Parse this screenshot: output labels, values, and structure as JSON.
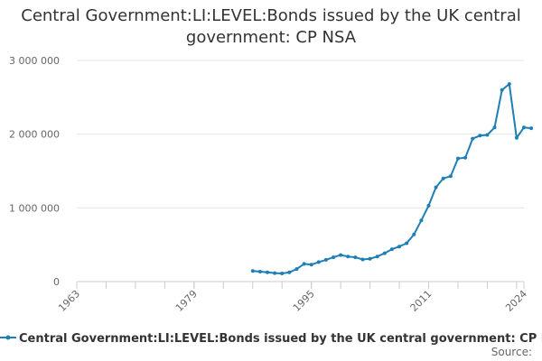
{
  "chart_data": {
    "type": "line",
    "title": "Central Government:LI:LEVEL:Bonds issued by the UK central government: CP NSA",
    "xlabel": "",
    "ylabel": "",
    "xlim": [
      1963,
      2024
    ],
    "ylim": [
      0,
      3000000
    ],
    "x_ticks": [
      1963,
      1979,
      1995,
      2011,
      2024
    ],
    "x_tick_labels": [
      "1963",
      "1979",
      "1995",
      "2011",
      "2024"
    ],
    "y_ticks": [
      0,
      1000000,
      2000000,
      3000000
    ],
    "y_tick_labels": [
      "0",
      "1 000 000",
      "2 000 000",
      "3 000 000"
    ],
    "grid": "horizontal",
    "legend_position": "bottom",
    "series": [
      {
        "name": "Central Government:LI:LEVEL:Bonds issued by the UK central government: CP NSA",
        "color": "#1f7fb5",
        "x": [
          1987,
          1988,
          1989,
          1990,
          1991,
          1992,
          1993,
          1994,
          1995,
          1996,
          1997,
          1998,
          1999,
          2000,
          2001,
          2002,
          2003,
          2004,
          2005,
          2006,
          2007,
          2008,
          2009,
          2010,
          2011,
          2012,
          2013,
          2014,
          2015,
          2016,
          2017,
          2018,
          2019,
          2020,
          2021,
          2022,
          2023,
          2024
        ],
        "values": [
          145000,
          135000,
          125000,
          115000,
          110000,
          125000,
          170000,
          240000,
          230000,
          265000,
          295000,
          330000,
          360000,
          340000,
          330000,
          300000,
          310000,
          340000,
          385000,
          440000,
          475000,
          520000,
          640000,
          830000,
          1030000,
          1280000,
          1400000,
          1430000,
          1670000,
          1680000,
          1940000,
          1980000,
          1990000,
          2090000,
          2600000,
          2680000,
          1950000,
          2090000
        ]
      }
    ],
    "series_last_point": {
      "x": 2025,
      "value": 2080000
    },
    "source_label": "Source:"
  }
}
